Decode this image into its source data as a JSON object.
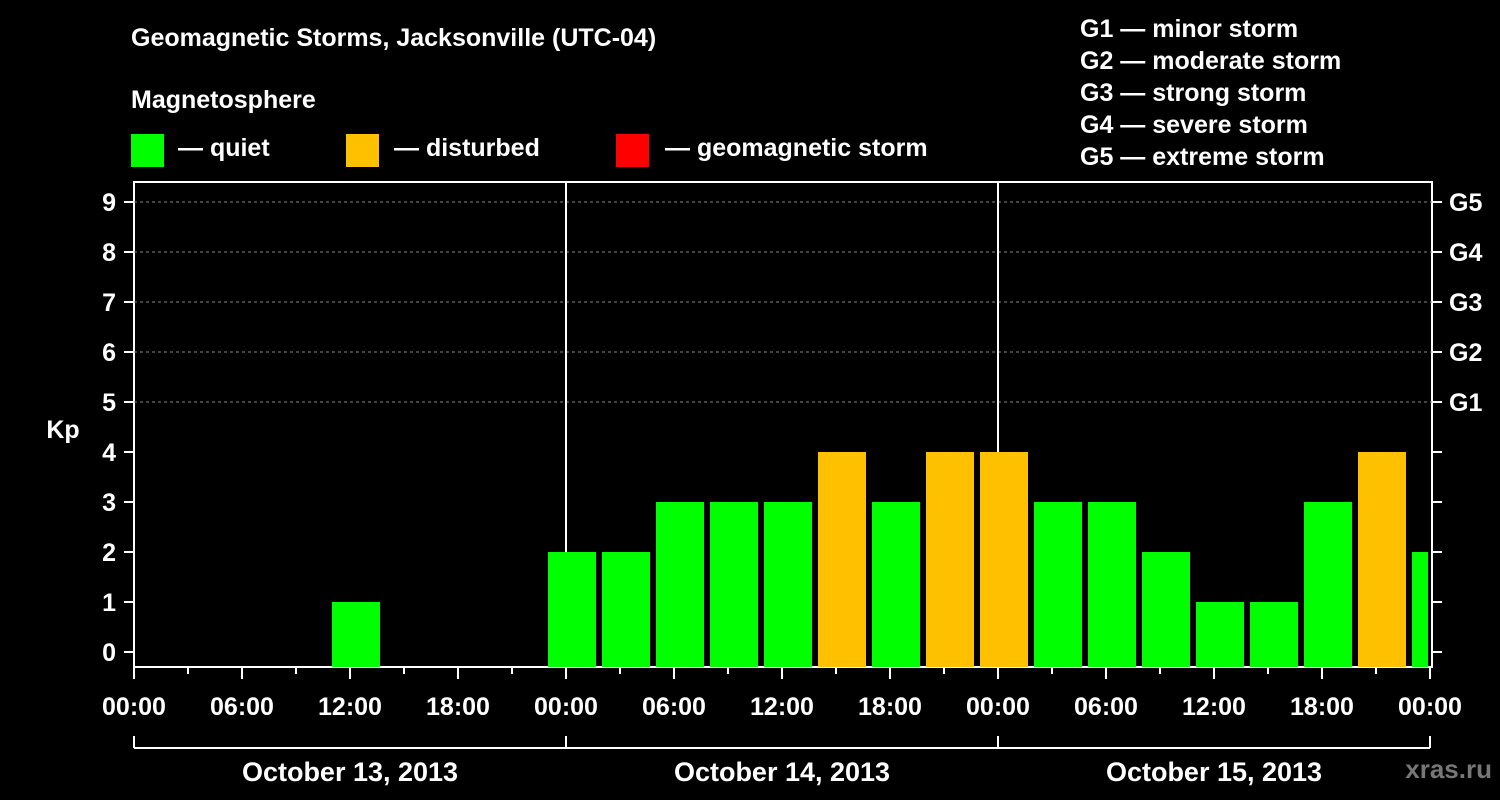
{
  "header": {
    "title": "Geomagnetic Storms, Jacksonville (UTC-04)",
    "subtitle": "Magnetosphere"
  },
  "legend": [
    {
      "label": "— quiet",
      "color": "#00ff00"
    },
    {
      "label": "— disturbed",
      "color": "#ffc000"
    },
    {
      "label": "— geomagnetic storm",
      "color": "#ff0000"
    }
  ],
  "g_scale": [
    "G1 — minor storm",
    "G2 — moderate storm",
    "G3 — strong storm",
    "G4 — severe storm",
    "G5 — extreme storm"
  ],
  "watermark": "xras.ru",
  "colors": {
    "quiet": "#00ff00",
    "disturbed": "#ffc000",
    "storm": "#ff0000",
    "background": "#000000",
    "grid": "#888888"
  },
  "chart_data": {
    "type": "bar",
    "ylabel": "Kp",
    "ylim": [
      0,
      9
    ],
    "y_ticks": [
      "0",
      "1",
      "2",
      "3",
      "4",
      "5",
      "6",
      "7",
      "8",
      "9"
    ],
    "right_ticks": [
      {
        "kp": 5,
        "label": "G1"
      },
      {
        "kp": 6,
        "label": "G2"
      },
      {
        "kp": 7,
        "label": "G3"
      },
      {
        "kp": 8,
        "label": "G4"
      },
      {
        "kp": 9,
        "label": "G5"
      }
    ],
    "x_tick_labels": [
      "00:00",
      "06:00",
      "12:00",
      "18:00",
      "00:00",
      "06:00",
      "12:00",
      "18:00",
      "00:00",
      "06:00",
      "12:00",
      "18:00",
      "00:00"
    ],
    "dates": [
      "October 13, 2013",
      "October 14, 2013",
      "October 15, 2013"
    ],
    "grid": "dashed horizontal at Kp 5–9",
    "bars": [
      {
        "start": "October 13, 2013 11:00",
        "kp": 1,
        "level": "quiet"
      },
      {
        "start": "October 13, 2013 23:00",
        "kp": 2,
        "level": "quiet"
      },
      {
        "start": "October 14, 2013 02:00",
        "kp": 2,
        "level": "quiet"
      },
      {
        "start": "October 14, 2013 05:00",
        "kp": 3,
        "level": "quiet"
      },
      {
        "start": "October 14, 2013 08:00",
        "kp": 3,
        "level": "quiet"
      },
      {
        "start": "October 14, 2013 11:00",
        "kp": 3,
        "level": "quiet"
      },
      {
        "start": "October 14, 2013 14:00",
        "kp": 4,
        "level": "disturbed"
      },
      {
        "start": "October 14, 2013 17:00",
        "kp": 3,
        "level": "quiet"
      },
      {
        "start": "October 14, 2013 20:00",
        "kp": 4,
        "level": "disturbed"
      },
      {
        "start": "October 14, 2013 23:00",
        "kp": 4,
        "level": "disturbed"
      },
      {
        "start": "October 15, 2013 02:00",
        "kp": 3,
        "level": "quiet"
      },
      {
        "start": "October 15, 2013 05:00",
        "kp": 3,
        "level": "quiet"
      },
      {
        "start": "October 15, 2013 08:00",
        "kp": 2,
        "level": "quiet"
      },
      {
        "start": "October 15, 2013 11:00",
        "kp": 1,
        "level": "quiet"
      },
      {
        "start": "October 15, 2013 14:00",
        "kp": 1,
        "level": "quiet"
      },
      {
        "start": "October 15, 2013 17:00",
        "kp": 3,
        "level": "quiet"
      },
      {
        "start": "October 15, 2013 20:00",
        "kp": 4,
        "level": "disturbed"
      },
      {
        "start": "October 15, 2013 23:00",
        "kp": 2,
        "level": "quiet"
      }
    ]
  }
}
